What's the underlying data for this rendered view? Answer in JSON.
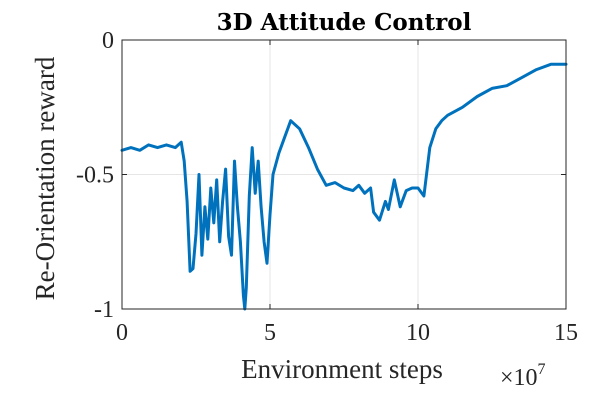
{
  "chart_data": {
    "type": "line",
    "title": "3D Attitude Control",
    "xlabel": "Environment steps",
    "ylabel": "Re-Orientation reward",
    "x_exponent_label": "×10",
    "x_exponent_power": "7",
    "xlim": [
      0,
      15
    ],
    "ylim": [
      -1,
      0
    ],
    "xticks": [
      0,
      5,
      10,
      15
    ],
    "xtick_labels": [
      "0",
      "5",
      "10",
      "15"
    ],
    "yticks": [
      0,
      -0.5,
      -1
    ],
    "ytick_labels": [
      "0",
      "-0.5",
      "-1"
    ],
    "grid": true,
    "line_color": "#0072BD",
    "series": [
      {
        "x": [
          0,
          0.3,
          0.6,
          0.9,
          1.2,
          1.5,
          1.8,
          2.0,
          2.1,
          2.2,
          2.3,
          2.4,
          2.5,
          2.6,
          2.7,
          2.8,
          2.9,
          3.0,
          3.1,
          3.2,
          3.3,
          3.4,
          3.5,
          3.6,
          3.7,
          3.8,
          3.9,
          4.0,
          4.1,
          4.15,
          4.2,
          4.25,
          4.3,
          4.4,
          4.5,
          4.6,
          4.7,
          4.8,
          4.9,
          5.0,
          5.1,
          5.3,
          5.5,
          5.7,
          6.0,
          6.3,
          6.6,
          6.9,
          7.2,
          7.5,
          7.8,
          8.0,
          8.2,
          8.4,
          8.5,
          8.7,
          8.9,
          9.0,
          9.2,
          9.4,
          9.6,
          9.8,
          10.0,
          10.2,
          10.4,
          10.6,
          10.8,
          11.0,
          11.5,
          12.0,
          12.5,
          13.0,
          13.5,
          14.0,
          14.5,
          15.0
        ],
        "y": [
          -0.41,
          -0.4,
          -0.41,
          -0.39,
          -0.4,
          -0.39,
          -0.4,
          -0.38,
          -0.45,
          -0.6,
          -0.86,
          -0.85,
          -0.72,
          -0.5,
          -0.8,
          -0.62,
          -0.74,
          -0.55,
          -0.68,
          -0.52,
          -0.75,
          -0.6,
          -0.48,
          -0.73,
          -0.8,
          -0.45,
          -0.62,
          -0.75,
          -0.95,
          -1.0,
          -0.92,
          -0.75,
          -0.58,
          -0.4,
          -0.57,
          -0.45,
          -0.62,
          -0.75,
          -0.83,
          -0.65,
          -0.5,
          -0.42,
          -0.36,
          -0.3,
          -0.33,
          -0.4,
          -0.48,
          -0.54,
          -0.53,
          -0.55,
          -0.56,
          -0.54,
          -0.57,
          -0.55,
          -0.64,
          -0.67,
          -0.6,
          -0.63,
          -0.52,
          -0.62,
          -0.56,
          -0.55,
          -0.55,
          -0.58,
          -0.4,
          -0.33,
          -0.3,
          -0.28,
          -0.25,
          -0.21,
          -0.18,
          -0.17,
          -0.14,
          -0.11,
          -0.09,
          -0.09
        ]
      }
    ]
  }
}
